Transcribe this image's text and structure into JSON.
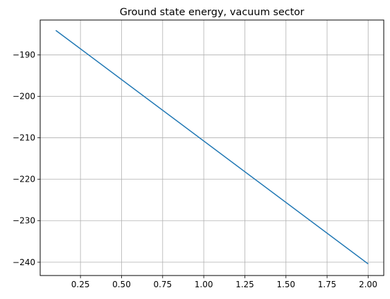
{
  "chart_data": {
    "type": "line",
    "title": "Ground state energy, vacuum sector",
    "xlabel": "",
    "ylabel": "",
    "xlim": [
      0.005,
      2.095
    ],
    "ylim": [
      -243.2,
      -181.6
    ],
    "xticks": [
      0.25,
      0.5,
      0.75,
      1.0,
      1.25,
      1.5,
      1.75,
      2.0
    ],
    "xtick_labels": [
      "0.25",
      "0.50",
      "0.75",
      "1.00",
      "1.25",
      "1.50",
      "1.75",
      "2.00"
    ],
    "yticks": [
      -190,
      -200,
      -210,
      -220,
      -230,
      -240
    ],
    "ytick_labels": [
      "−190",
      "−200",
      "−210",
      "−220",
      "−230",
      "−240"
    ],
    "grid": true,
    "series": [
      {
        "color": "#1f77b4",
        "x": [
          0.1,
          2.0
        ],
        "y": [
          -184.1,
          -240.4
        ]
      }
    ]
  }
}
